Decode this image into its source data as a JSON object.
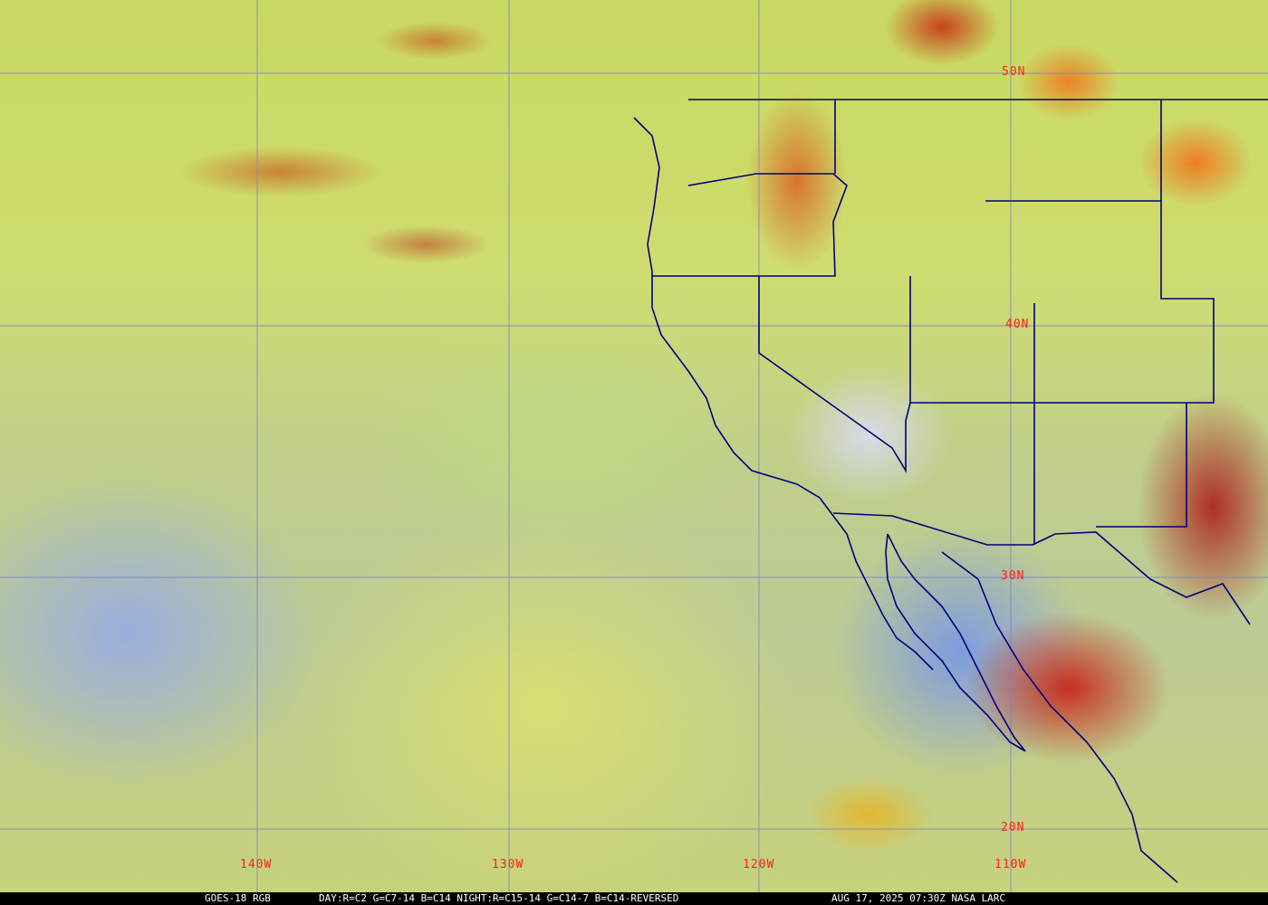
{
  "map": {
    "latitude_labels": [
      "50N",
      "40N",
      "30N",
      "20N"
    ],
    "longitude_labels": [
      "140W",
      "130W",
      "120W",
      "110W"
    ],
    "grid_color": "#8080c0",
    "border_color": "#00007a",
    "label_color": "#ff2020"
  },
  "caption": {
    "product": "GOES-18 RGB",
    "recipe": "DAY:R=C2 G=C7-14 B=C14 NIGHT:R=C15-14 G=C14-7 B=C14-REVERSED",
    "timestamp": "AUG 17, 2025 07:30Z NASA LARC"
  }
}
